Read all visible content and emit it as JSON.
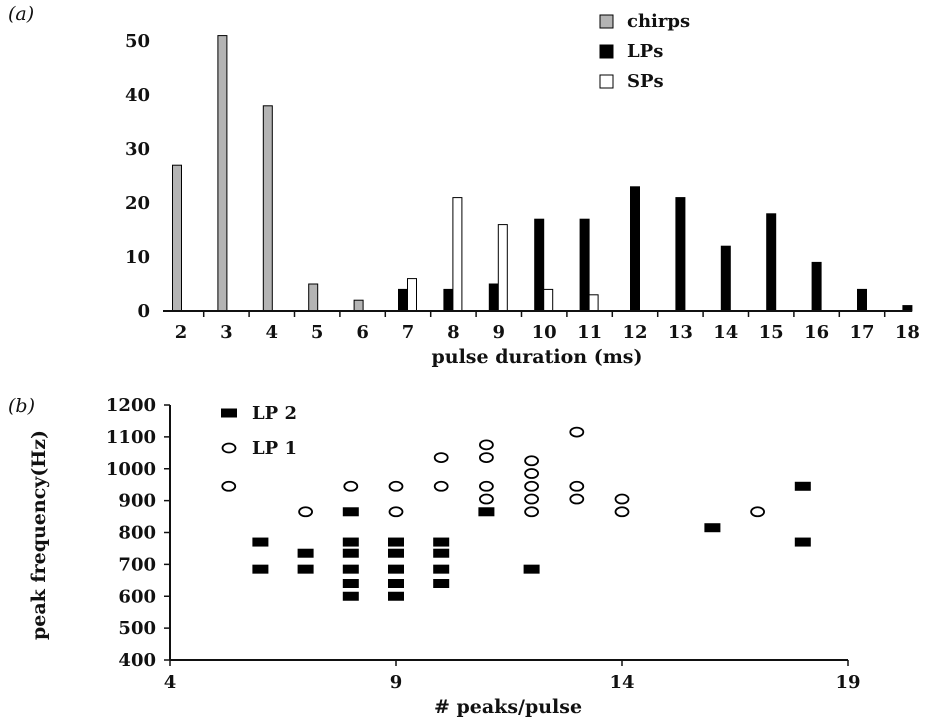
{
  "chart_data": [
    {
      "panel_label": "(a)",
      "type": "bar",
      "xlabel": "pulse duration (ms)",
      "ylabel": "",
      "ylim": [
        0,
        55
      ],
      "yticks": [
        0,
        10,
        20,
        30,
        40,
        50
      ],
      "categories": [
        "2",
        "3",
        "4",
        "5",
        "6",
        "7",
        "8",
        "9",
        "10",
        "11",
        "12",
        "13",
        "14",
        "15",
        "16",
        "17",
        "18"
      ],
      "legend_position": "top-right",
      "grid": false,
      "series": [
        {
          "name": "chirps",
          "color": "#b4b4b4",
          "values": [
            27,
            51,
            38,
            5,
            2,
            0,
            0,
            0,
            0,
            0,
            0,
            0,
            0,
            0,
            0,
            0,
            0
          ]
        },
        {
          "name": "LPs",
          "color": "#000000",
          "values": [
            0,
            0,
            0,
            0,
            0,
            4,
            4,
            5,
            17,
            17,
            23,
            21,
            12,
            18,
            9,
            4,
            1
          ]
        },
        {
          "name": "SPs",
          "color": "#ffffff",
          "values": [
            0,
            0,
            0,
            0,
            0,
            6,
            21,
            16,
            4,
            3,
            0,
            0,
            0,
            0,
            0,
            0,
            0
          ]
        }
      ]
    },
    {
      "panel_label": "(b)",
      "type": "scatter",
      "xlabel": "# peaks/pulse",
      "ylabel": "peak frequency(Hz)",
      "xlim": [
        4,
        19
      ],
      "xticks": [
        4,
        9,
        14,
        19
      ],
      "ylim": [
        400,
        1200
      ],
      "yticks": [
        400,
        500,
        600,
        700,
        800,
        900,
        1000,
        1100,
        1200
      ],
      "legend_position": "top-left",
      "grid": false,
      "series": [
        {
          "name": "LP 2",
          "marker": "filled-rect",
          "points": [
            [
              6,
              770
            ],
            [
              6,
              685
            ],
            [
              7,
              735
            ],
            [
              7,
              685
            ],
            [
              8,
              865
            ],
            [
              8,
              770
            ],
            [
              8,
              735
            ],
            [
              8,
              685
            ],
            [
              8,
              640
            ],
            [
              8,
              600
            ],
            [
              9,
              770
            ],
            [
              9,
              735
            ],
            [
              9,
              685
            ],
            [
              9,
              640
            ],
            [
              9,
              600
            ],
            [
              10,
              770
            ],
            [
              10,
              735
            ],
            [
              10,
              685
            ],
            [
              10,
              640
            ],
            [
              11,
              865
            ],
            [
              12,
              685
            ],
            [
              16,
              815
            ],
            [
              18,
              945
            ],
            [
              18,
              770
            ]
          ]
        },
        {
          "name": "LP 1",
          "marker": "open-circle",
          "points": [
            [
              5.3,
              945
            ],
            [
              7,
              865
            ],
            [
              8,
              945
            ],
            [
              9,
              945
            ],
            [
              9,
              865
            ],
            [
              10,
              1035
            ],
            [
              10,
              945
            ],
            [
              11,
              1075
            ],
            [
              11,
              1035
            ],
            [
              11,
              945
            ],
            [
              11,
              905
            ],
            [
              12,
              1025
            ],
            [
              12,
              985
            ],
            [
              12,
              945
            ],
            [
              12,
              905
            ],
            [
              12,
              865
            ],
            [
              13,
              1115
            ],
            [
              13,
              945
            ],
            [
              13,
              905
            ],
            [
              14,
              905
            ],
            [
              14,
              865
            ],
            [
              17,
              865
            ]
          ]
        }
      ]
    }
  ]
}
